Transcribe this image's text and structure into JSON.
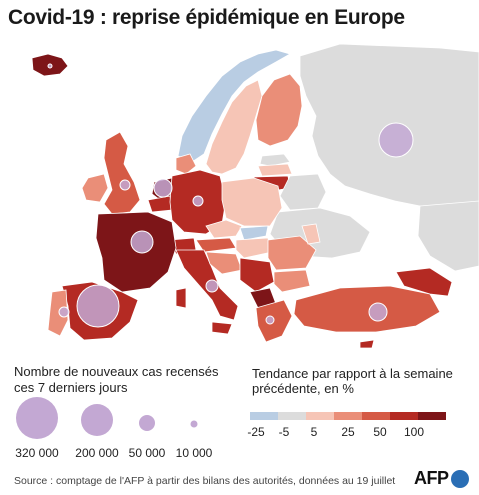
{
  "title": "Covid-19 : reprise épidémique en Europe",
  "legend": {
    "size_title": "Nombre de nouveaux cas recensés ces 7 derniers jours",
    "size_values": [
      "320 000",
      "200 000",
      "50 000",
      "10 000"
    ],
    "trend_title": "Tendance par rapport à la semaine précédente, en %",
    "trend_ticks": [
      "-25",
      "-5",
      "5",
      "25",
      "50",
      "100"
    ],
    "trend_colors": [
      "#b9cde3",
      "#dcdcdc",
      "#f6c5b6",
      "#ea8e78",
      "#d55a45",
      "#b42a23",
      "#7d1518"
    ]
  },
  "colors": {
    "nodata": "#dcdcdc",
    "bubble_fill": "#c3a8d3",
    "bubble_stroke": "#ffffff"
  },
  "source": "Source : comptage de l'AFP à partir des bilans des autorités, données au 19 juillet",
  "logo": "AFP"
}
